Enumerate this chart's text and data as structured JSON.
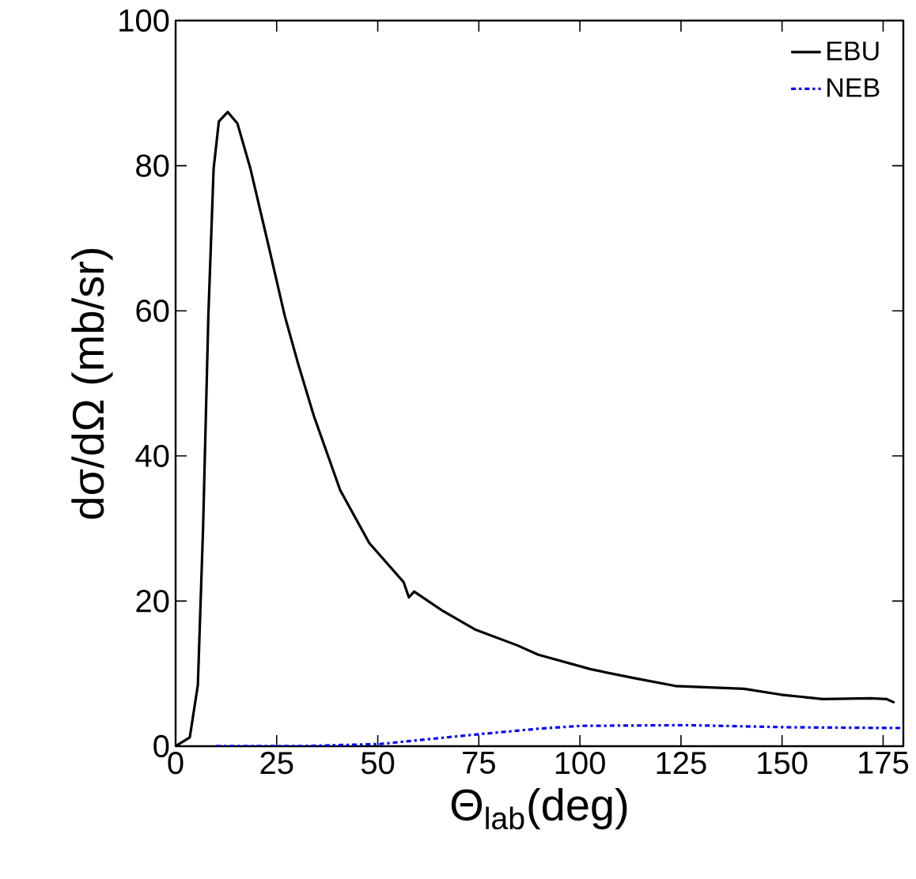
{
  "chart_data": {
    "type": "line",
    "xlabel": "Θ$_{lab}$(deg)",
    "ylabel": "dσ/dΩ (mb/sr)",
    "xlim": [
      0,
      180
    ],
    "ylim": [
      0,
      100
    ],
    "xticks": [
      0,
      25,
      50,
      75,
      100,
      125,
      150,
      175
    ],
    "yticks": [
      0,
      20,
      40,
      60,
      80,
      100
    ],
    "legend": "top right",
    "grid": false,
    "series": [
      {
        "name": "EBU",
        "color": "#000000",
        "line_style": "solid",
        "x": [
          0,
          3.5,
          5.5,
          6.8,
          8.1,
          9.4,
          10.7,
          12.9,
          15.3,
          18.5,
          23.1,
          27.0,
          30.3,
          34.2,
          40.7,
          47.9,
          56.4,
          57.7,
          59.0,
          66.2,
          74.0,
          84.5,
          89.7,
          93.6,
          102.7,
          113.2,
          123.6,
          140.6,
          149.7,
          160.1,
          171.9,
          175.8,
          177.8
        ],
        "values": [
          0,
          1.2,
          8.4,
          30.2,
          59.3,
          79.6,
          86.1,
          87.4,
          85.8,
          79.6,
          68.7,
          59.3,
          52.7,
          45.5,
          35.3,
          28.0,
          22.6,
          20.5,
          21.3,
          18.6,
          16.1,
          13.9,
          12.6,
          12.0,
          10.6,
          9.4,
          8.3,
          7.9,
          7.1,
          6.5,
          6.6,
          6.5,
          6.0
        ]
      },
      {
        "name": "NEB",
        "color": "#0000ff",
        "line_style": "dashdot",
        "x": [
          10,
          30,
          50.5,
          74.0,
          89.7,
          100.1,
          126.2,
          152.3,
          179.4
        ],
        "values": [
          0,
          0,
          0.3,
          1.6,
          2.4,
          2.8,
          2.9,
          2.6,
          2.5
        ]
      }
    ]
  }
}
